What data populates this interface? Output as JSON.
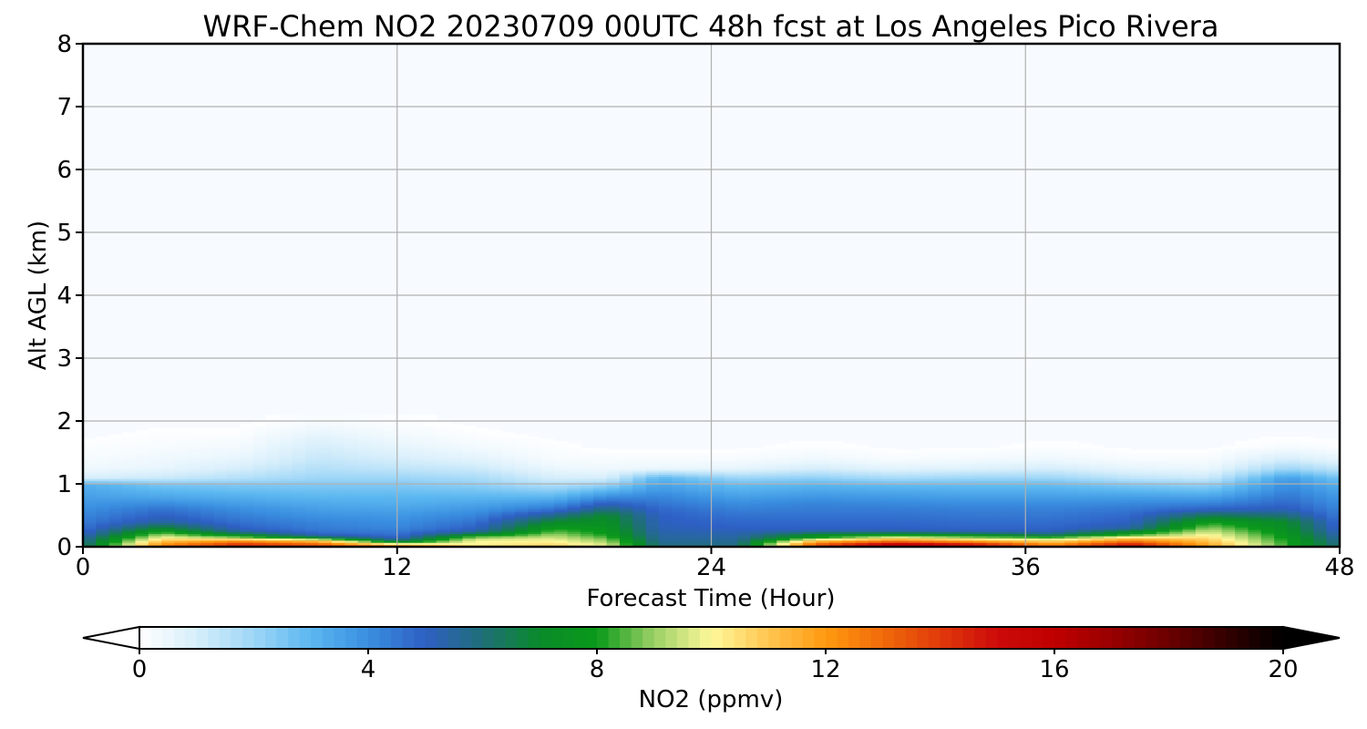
{
  "chart_data": {
    "type": "heatmap",
    "title": "WRF-Chem NO2  20230709 00UTC 48h fcst at Los Angeles Pico Rivera",
    "xlabel": "Forecast Time (Hour)",
    "ylabel": "Alt AGL (km)",
    "xlim": [
      0,
      48
    ],
    "ylim": [
      0,
      8
    ],
    "x_ticks": [
      "0",
      "12",
      "24",
      "36",
      "48"
    ],
    "y_ticks": [
      "0",
      "1",
      "2",
      "3",
      "4",
      "5",
      "6",
      "7",
      "8"
    ],
    "grid": true,
    "colorbar": {
      "label": "NO2  (ppmv)",
      "range": [
        0,
        20
      ],
      "ticks": [
        "0",
        "4",
        "8",
        "12",
        "16",
        "20"
      ],
      "extend": "both",
      "orientation": "horizontal",
      "placement": "bottom",
      "colors": [
        {
          "value": 0,
          "color": "#ffffff"
        },
        {
          "value": 1,
          "color": "#d6eefb"
        },
        {
          "value": 2,
          "color": "#9ed6f7"
        },
        {
          "value": 3,
          "color": "#5bb7f0"
        },
        {
          "value": 4,
          "color": "#3a8fe0"
        },
        {
          "value": 5,
          "color": "#2e5fc4"
        },
        {
          "value": 6,
          "color": "#1f6f78"
        },
        {
          "value": 7,
          "color": "#0a8a2a"
        },
        {
          "value": 8,
          "color": "#0a9a1a"
        },
        {
          "value": 9,
          "color": "#9bd066"
        },
        {
          "value": 10,
          "color": "#fff89a"
        },
        {
          "value": 11,
          "color": "#ffc550"
        },
        {
          "value": 12,
          "color": "#ff9a10"
        },
        {
          "value": 13,
          "color": "#f06a0a"
        },
        {
          "value": 14,
          "color": "#e03a0a"
        },
        {
          "value": 15,
          "color": "#cc0a0a"
        },
        {
          "value": 16,
          "color": "#c00000"
        },
        {
          "value": 17,
          "color": "#990000"
        },
        {
          "value": 18,
          "color": "#6b0000"
        },
        {
          "value": 19,
          "color": "#330000"
        },
        {
          "value": 20,
          "color": "#000000"
        }
      ]
    },
    "field": {
      "x_hours": [
        0,
        3,
        6,
        9,
        12,
        15,
        18,
        20,
        22,
        25,
        28,
        31,
        34,
        37,
        40,
        43,
        46,
        48
      ],
      "z_km": [
        0,
        0.05,
        0.1,
        0.15,
        0.2,
        0.25,
        0.3,
        0.4,
        0.5,
        0.6,
        0.7,
        0.8,
        0.9,
        1.0,
        1.1,
        1.25,
        1.4,
        1.6,
        1.8,
        2.0,
        8.0
      ],
      "no2_ppmv": [
        [
          6.0,
          5.8,
          5.6,
          5.4,
          5.0,
          4.8,
          4.6,
          4.4,
          4.2,
          4.0,
          3.8,
          3.6,
          3.4,
          3.2,
          1.0,
          0.4,
          0.2,
          0.1,
          0.0,
          0.0,
          0.0
        ],
        [
          13.0,
          12.0,
          11.0,
          10.0,
          9.0,
          8.0,
          7.0,
          5.5,
          5.0,
          4.6,
          4.0,
          3.4,
          3.0,
          2.5,
          1.2,
          0.6,
          0.4,
          0.2,
          0.1,
          0.0,
          0.0
        ],
        [
          14.5,
          14.0,
          12.0,
          9.0,
          7.0,
          5.5,
          5.0,
          4.6,
          4.3,
          4.0,
          3.6,
          3.2,
          2.8,
          2.4,
          1.6,
          1.0,
          0.6,
          0.3,
          0.1,
          0.0,
          0.0
        ],
        [
          14.0,
          13.0,
          11.0,
          7.0,
          5.0,
          4.6,
          4.4,
          4.2,
          3.9,
          3.6,
          3.3,
          3.0,
          2.7,
          2.4,
          2.0,
          1.6,
          1.3,
          1.0,
          0.6,
          0.2,
          0.0
        ],
        [
          13.5,
          10.0,
          6.0,
          5.0,
          4.6,
          4.4,
          4.2,
          4.0,
          3.8,
          3.5,
          3.2,
          3.0,
          2.7,
          2.4,
          2.0,
          1.4,
          1.0,
          0.6,
          0.3,
          0.1,
          0.0
        ],
        [
          11.0,
          10.0,
          10.0,
          9.0,
          7.0,
          5.5,
          5.0,
          4.6,
          4.2,
          3.8,
          3.4,
          3.0,
          2.6,
          2.2,
          1.8,
          1.2,
          0.7,
          0.3,
          0.1,
          0.0,
          0.0
        ],
        [
          11.0,
          10.5,
          10.0,
          9.5,
          9.0,
          8.5,
          8.0,
          7.0,
          5.8,
          4.6,
          3.8,
          3.0,
          2.3,
          1.6,
          1.0,
          0.5,
          0.2,
          0.1,
          0.0,
          0.0,
          0.0
        ],
        [
          10.0,
          9.5,
          9.0,
          8.5,
          8.0,
          7.8,
          7.6,
          7.3,
          7.0,
          6.0,
          5.0,
          4.0,
          3.0,
          2.0,
          1.0,
          0.4,
          0.2,
          0.0,
          0.0,
          0.0,
          0.0
        ],
        [
          6.0,
          5.8,
          5.6,
          5.5,
          5.4,
          5.3,
          5.2,
          5.1,
          5.0,
          4.8,
          4.5,
          4.2,
          3.8,
          3.5,
          3.0,
          0.5,
          0.2,
          0.0,
          0.0,
          0.0,
          0.0
        ],
        [
          6.0,
          5.8,
          5.6,
          5.5,
          5.3,
          5.2,
          5.0,
          4.8,
          4.6,
          4.3,
          4.0,
          3.6,
          3.2,
          2.8,
          2.0,
          0.6,
          0.2,
          0.0,
          0.0,
          0.0,
          0.0
        ],
        [
          14.0,
          13.0,
          11.0,
          8.0,
          7.0,
          5.5,
          5.0,
          4.8,
          4.6,
          4.4,
          4.2,
          3.8,
          3.4,
          3.0,
          2.2,
          1.0,
          0.4,
          0.1,
          0.0,
          0.0,
          0.0
        ],
        [
          16.5,
          15.5,
          12.5,
          10.0,
          7.5,
          5.5,
          5.0,
          4.8,
          4.6,
          4.4,
          4.1,
          3.7,
          3.3,
          2.8,
          1.8,
          0.7,
          0.2,
          0.0,
          0.0,
          0.0,
          0.0
        ],
        [
          15.5,
          14.5,
          11.5,
          9.0,
          7.0,
          5.2,
          4.9,
          4.7,
          4.5,
          4.3,
          4.0,
          3.6,
          3.2,
          2.8,
          2.0,
          0.8,
          0.3,
          0.0,
          0.0,
          0.0,
          0.0
        ],
        [
          13.0,
          12.0,
          10.5,
          8.5,
          6.0,
          5.2,
          4.9,
          4.7,
          4.5,
          4.3,
          4.0,
          3.6,
          3.2,
          2.8,
          2.0,
          1.0,
          0.4,
          0.1,
          0.0,
          0.0,
          0.0
        ],
        [
          15.5,
          14.5,
          12.5,
          10.5,
          8.0,
          7.0,
          5.5,
          5.0,
          4.8,
          4.5,
          4.1,
          3.6,
          3.0,
          2.4,
          1.4,
          0.6,
          0.2,
          0.0,
          0.0,
          0.0,
          0.0
        ],
        [
          12.0,
          11.5,
          11.0,
          10.5,
          10.0,
          9.5,
          9.0,
          8.0,
          6.5,
          5.0,
          4.2,
          3.5,
          2.8,
          2.1,
          1.2,
          0.5,
          0.2,
          0.0,
          0.0,
          0.0,
          0.0
        ],
        [
          8.5,
          8.2,
          8.0,
          7.8,
          7.6,
          7.4,
          7.2,
          7.0,
          6.0,
          5.2,
          4.8,
          4.5,
          4.2,
          4.0,
          3.6,
          2.0,
          1.0,
          0.2,
          0.0,
          0.0,
          0.0
        ],
        [
          6.0,
          5.8,
          5.6,
          5.4,
          5.2,
          5.0,
          4.8,
          4.6,
          4.4,
          4.2,
          4.0,
          3.8,
          3.5,
          3.2,
          2.6,
          1.4,
          0.6,
          0.1,
          0.0,
          0.0,
          0.0
        ]
      ]
    }
  }
}
